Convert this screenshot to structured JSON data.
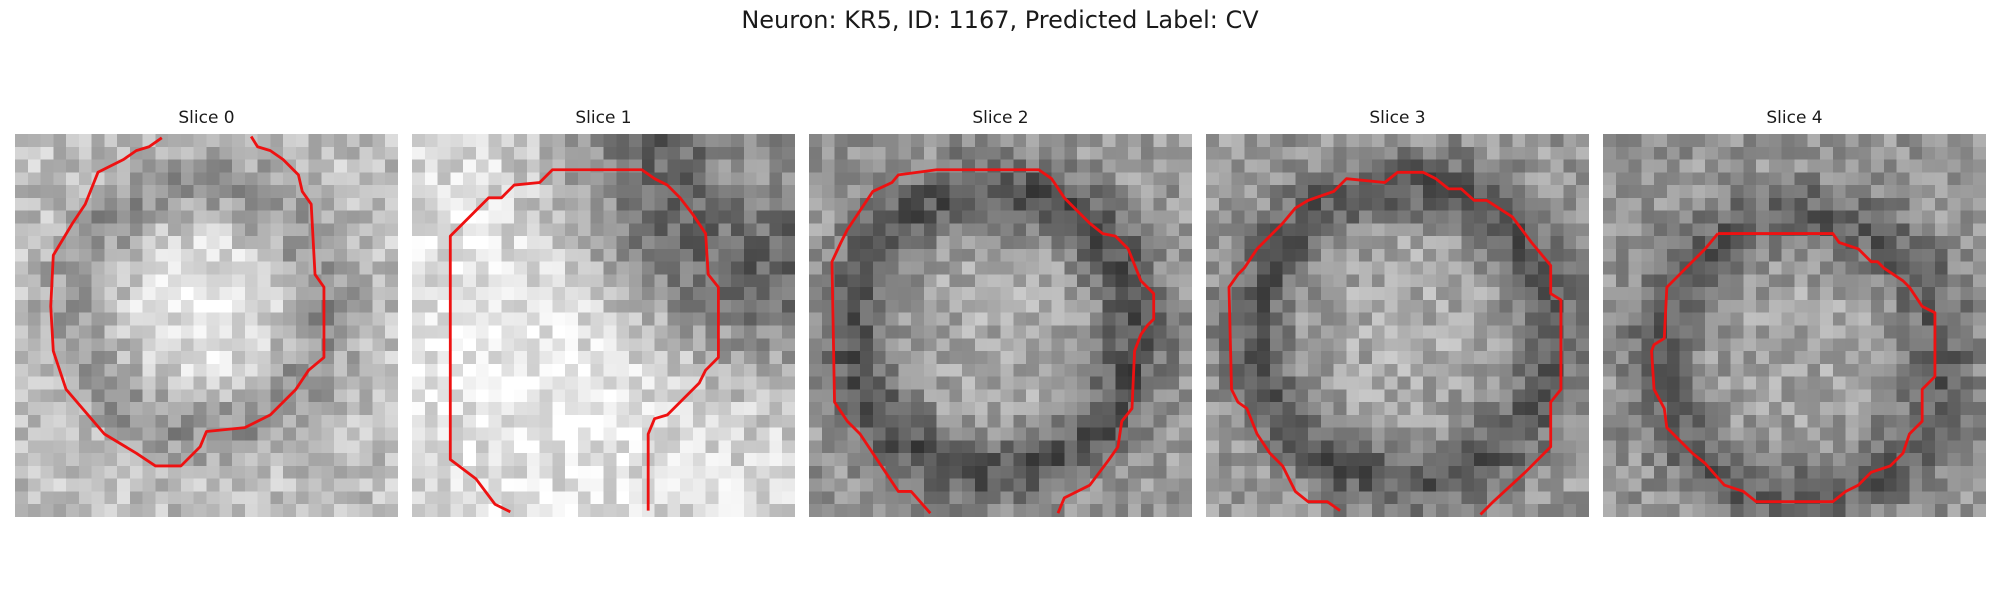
{
  "figure": {
    "title": "Neuron: KR5, ID: 1167, Predicted Label: CV",
    "contour_color": "#ee1111"
  },
  "slices": [
    {
      "title": "Slice 0",
      "seed": 11,
      "bright": [
        14,
        13,
        7.0,
        190,
        40
      ],
      "ring": [
        14,
        13,
        9.5,
        60,
        2.2
      ]
    },
    {
      "title": "Slice 1",
      "seed": 23,
      "bright": [
        12,
        15,
        9.0,
        215,
        30
      ],
      "ring": [
        27,
        2,
        8.0,
        120,
        6.0
      ]
    },
    {
      "title": "Slice 2",
      "seed": 37,
      "bright": [
        14,
        15,
        8.5,
        150,
        20
      ],
      "ring": [
        14,
        15,
        11.0,
        75,
        2.0
      ]
    },
    {
      "title": "Slice 3",
      "seed": 41,
      "bright": [
        15,
        15,
        9.0,
        150,
        20
      ],
      "ring": [
        15,
        15,
        11.5,
        70,
        2.0
      ]
    },
    {
      "title": "Slice 4",
      "seed": 53,
      "bright": [
        15,
        16,
        7.0,
        150,
        15
      ],
      "ring": [
        15,
        17,
        11.0,
        60,
        2.0
      ]
    }
  ]
}
